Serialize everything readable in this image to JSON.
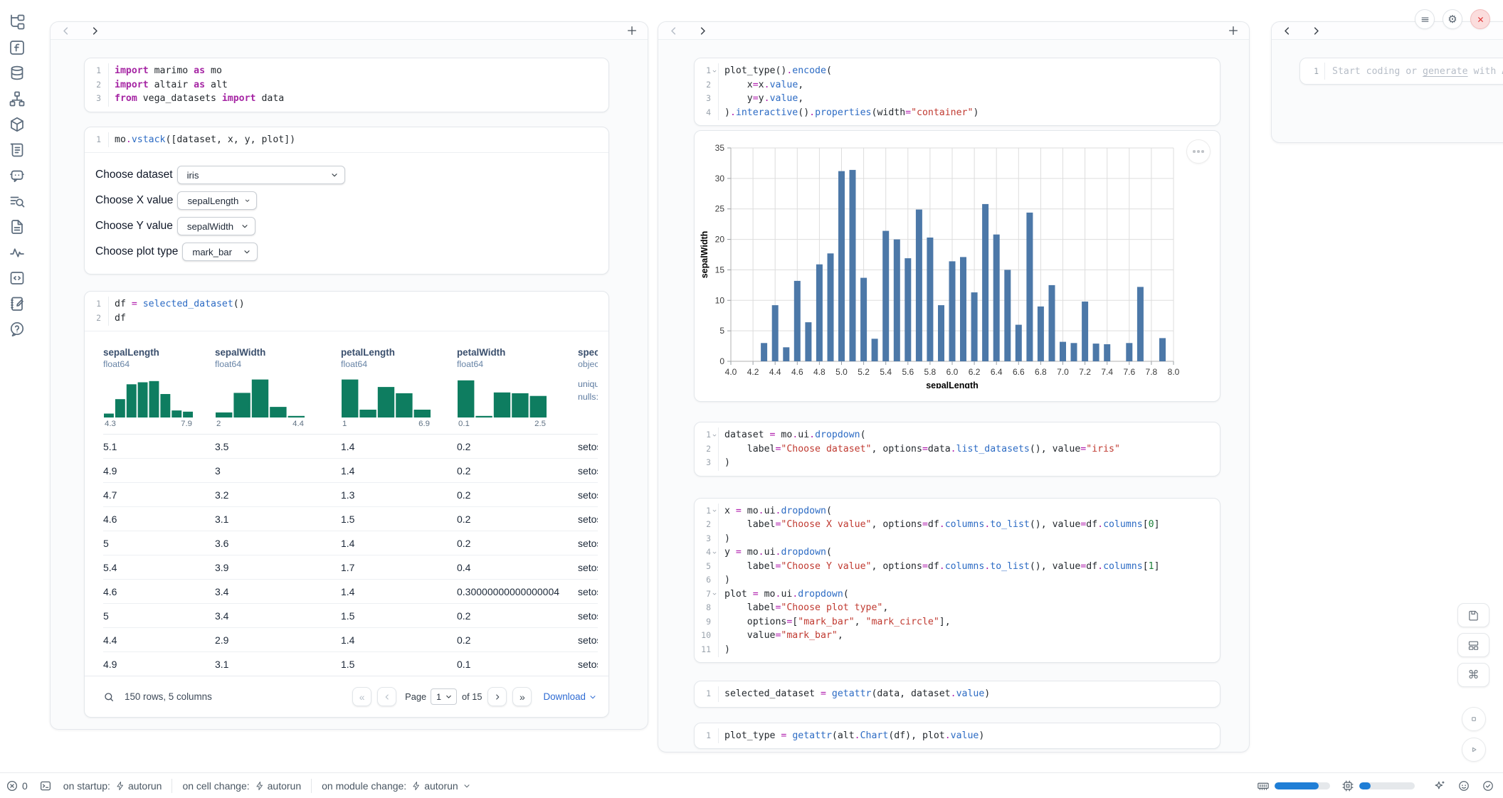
{
  "sidebar": {
    "icons": [
      "file-tree",
      "functions",
      "database",
      "dependencies",
      "packages",
      "scroll",
      "chat-bot",
      "search-list",
      "document",
      "activity",
      "snippets",
      "scratchpad",
      "help"
    ]
  },
  "left_panel": {
    "cells": {
      "imports": [
        {
          "n": "1",
          "t": [
            [
              "kw",
              "import"
            ],
            [
              "p",
              " marimo "
            ],
            [
              "kw",
              "as"
            ],
            [
              "p",
              " mo"
            ]
          ]
        },
        {
          "n": "2",
          "t": [
            [
              "kw",
              "import"
            ],
            [
              "p",
              " altair "
            ],
            [
              "kw",
              "as"
            ],
            [
              "p",
              " alt"
            ]
          ]
        },
        {
          "n": "3",
          "t": [
            [
              "kw",
              "from"
            ],
            [
              "p",
              " vega_datasets "
            ],
            [
              "kw",
              "import"
            ],
            [
              "p",
              " data"
            ]
          ]
        }
      ],
      "vstack": [
        {
          "n": "1",
          "t": [
            [
              "p",
              "mo"
            ],
            [
              "op",
              "."
            ],
            [
              "fn",
              "vstack"
            ],
            [
              "p",
              "([dataset, x, y, plot])"
            ]
          ]
        }
      ],
      "df": [
        {
          "n": "1",
          "t": [
            [
              "p",
              "df "
            ],
            [
              "op",
              "="
            ],
            [
              "p",
              " "
            ],
            [
              "fn",
              "selected_dataset"
            ],
            [
              "p",
              "()"
            ]
          ]
        },
        {
          "n": "2",
          "t": [
            [
              "p",
              "df"
            ]
          ]
        }
      ]
    },
    "controls": [
      {
        "label": "Choose dataset",
        "value": "iris"
      },
      {
        "label": "Choose X value",
        "value": "sepalLength"
      },
      {
        "label": "Choose Y value",
        "value": "sepalWidth"
      },
      {
        "label": "Choose plot type",
        "value": "mark_bar"
      }
    ],
    "table": {
      "columns": [
        {
          "name": "sepalLength",
          "dtype": "float64",
          "hist": [
            0.1,
            0.47,
            0.85,
            0.9,
            0.93,
            0.6,
            0.18,
            0.15
          ],
          "min": "4.3",
          "max": "7.9"
        },
        {
          "name": "sepalWidth",
          "dtype": "float64",
          "hist": [
            0.13,
            0.63,
            0.97,
            0.27,
            0.04
          ],
          "min": "2",
          "max": "4.4"
        },
        {
          "name": "petalLength",
          "dtype": "float64",
          "hist": [
            0.97,
            0.2,
            0.78,
            0.62,
            0.2
          ],
          "min": "1",
          "max": "6.9"
        },
        {
          "name": "petalWidth",
          "dtype": "float64",
          "hist": [
            0.95,
            0.04,
            0.64,
            0.62,
            0.55
          ],
          "min": "0.1",
          "max": "2.5"
        },
        {
          "name": "species",
          "dtype": "object",
          "meta": [
            "unique",
            "nulls:"
          ]
        }
      ],
      "rows": [
        [
          "5.1",
          "3.5",
          "1.4",
          "0.2",
          "setosa"
        ],
        [
          "4.9",
          "3",
          "1.4",
          "0.2",
          "setosa"
        ],
        [
          "4.7",
          "3.2",
          "1.3",
          "0.2",
          "setosa"
        ],
        [
          "4.6",
          "3.1",
          "1.5",
          "0.2",
          "setosa"
        ],
        [
          "5",
          "3.6",
          "1.4",
          "0.2",
          "setosa"
        ],
        [
          "5.4",
          "3.9",
          "1.7",
          "0.4",
          "setosa"
        ],
        [
          "4.6",
          "3.4",
          "1.4",
          "0.30000000000000004",
          "setosa"
        ],
        [
          "5",
          "3.4",
          "1.5",
          "0.2",
          "setosa"
        ],
        [
          "4.4",
          "2.9",
          "1.4",
          "0.2",
          "setosa"
        ],
        [
          "4.9",
          "3.1",
          "1.5",
          "0.1",
          "setosa"
        ]
      ],
      "footer": {
        "summary": "150 rows, 5 columns",
        "first_label": "«",
        "prev_label": "‹",
        "next_label": "›",
        "last_label": "»",
        "page_label": "Page",
        "page_value": "1",
        "pages_label": "of 15",
        "download_label": "Download"
      }
    }
  },
  "middle_panel": {
    "cells": {
      "plot_encode": [
        {
          "n": "1",
          "fold": true,
          "t": [
            [
              "p",
              "plot_type()"
            ],
            [
              "op",
              "."
            ],
            [
              "fn",
              "encode"
            ],
            [
              "p",
              "("
            ]
          ]
        },
        {
          "n": "2",
          "t": [
            [
              "p",
              "    x"
            ],
            [
              "op",
              "="
            ],
            [
              "p",
              "x"
            ],
            [
              "op",
              "."
            ],
            [
              "fn",
              "value"
            ],
            [
              "p",
              ","
            ]
          ]
        },
        {
          "n": "3",
          "t": [
            [
              "p",
              "    y"
            ],
            [
              "op",
              "="
            ],
            [
              "p",
              "y"
            ],
            [
              "op",
              "."
            ],
            [
              "fn",
              "value"
            ],
            [
              "p",
              ","
            ]
          ]
        },
        {
          "n": "4",
          "t": [
            [
              "p",
              ")"
            ],
            [
              "op",
              "."
            ],
            [
              "fn",
              "interactive"
            ],
            [
              "p",
              "()"
            ],
            [
              "op",
              "."
            ],
            [
              "fn",
              "properties"
            ],
            [
              "p",
              "(width"
            ],
            [
              "op",
              "="
            ],
            [
              "str",
              "\"container\""
            ],
            [
              "p",
              ")"
            ]
          ]
        }
      ],
      "dataset_dropdown": [
        {
          "n": "1",
          "fold": true,
          "t": [
            [
              "p",
              "dataset "
            ],
            [
              "op",
              "="
            ],
            [
              "p",
              " mo"
            ],
            [
              "op",
              "."
            ],
            [
              "p",
              "ui"
            ],
            [
              "op",
              "."
            ],
            [
              "fn",
              "dropdown"
            ],
            [
              "p",
              "("
            ]
          ]
        },
        {
          "n": "2",
          "t": [
            [
              "p",
              "    label"
            ],
            [
              "op",
              "="
            ],
            [
              "str",
              "\"Choose dataset\""
            ],
            [
              "p",
              ", options"
            ],
            [
              "op",
              "="
            ],
            [
              "p",
              "data"
            ],
            [
              "op",
              "."
            ],
            [
              "fn",
              "list_datasets"
            ],
            [
              "p",
              "(), value"
            ],
            [
              "op",
              "="
            ],
            [
              "str",
              "\"iris\""
            ]
          ]
        },
        {
          "n": "3",
          "t": [
            [
              "p",
              ")"
            ]
          ]
        }
      ],
      "xy_plot_dropdowns": [
        {
          "n": "1",
          "fold": true,
          "t": [
            [
              "p",
              "x "
            ],
            [
              "op",
              "="
            ],
            [
              "p",
              " mo"
            ],
            [
              "op",
              "."
            ],
            [
              "p",
              "ui"
            ],
            [
              "op",
              "."
            ],
            [
              "fn",
              "dropdown"
            ],
            [
              "p",
              "("
            ]
          ]
        },
        {
          "n": "2",
          "t": [
            [
              "p",
              "    label"
            ],
            [
              "op",
              "="
            ],
            [
              "str",
              "\"Choose X value\""
            ],
            [
              "p",
              ", options"
            ],
            [
              "op",
              "="
            ],
            [
              "p",
              "df"
            ],
            [
              "op",
              "."
            ],
            [
              "fn",
              "columns"
            ],
            [
              "op",
              "."
            ],
            [
              "fn",
              "to_list"
            ],
            [
              "p",
              "(), value"
            ],
            [
              "op",
              "="
            ],
            [
              "p",
              "df"
            ],
            [
              "op",
              "."
            ],
            [
              "fn",
              "columns"
            ],
            [
              "p",
              "["
            ],
            [
              "num",
              "0"
            ],
            [
              "p",
              "]"
            ]
          ]
        },
        {
          "n": "3",
          "t": [
            [
              "p",
              ")"
            ]
          ]
        },
        {
          "n": "4",
          "fold": true,
          "t": [
            [
              "p",
              "y "
            ],
            [
              "op",
              "="
            ],
            [
              "p",
              " mo"
            ],
            [
              "op",
              "."
            ],
            [
              "p",
              "ui"
            ],
            [
              "op",
              "."
            ],
            [
              "fn",
              "dropdown"
            ],
            [
              "p",
              "("
            ]
          ]
        },
        {
          "n": "5",
          "t": [
            [
              "p",
              "    label"
            ],
            [
              "op",
              "="
            ],
            [
              "str",
              "\"Choose Y value\""
            ],
            [
              "p",
              ", options"
            ],
            [
              "op",
              "="
            ],
            [
              "p",
              "df"
            ],
            [
              "op",
              "."
            ],
            [
              "fn",
              "columns"
            ],
            [
              "op",
              "."
            ],
            [
              "fn",
              "to_list"
            ],
            [
              "p",
              "(), value"
            ],
            [
              "op",
              "="
            ],
            [
              "p",
              "df"
            ],
            [
              "op",
              "."
            ],
            [
              "fn",
              "columns"
            ],
            [
              "p",
              "["
            ],
            [
              "num",
              "1"
            ],
            [
              "p",
              "]"
            ]
          ]
        },
        {
          "n": "6",
          "t": [
            [
              "p",
              ")"
            ]
          ]
        },
        {
          "n": "7",
          "fold": true,
          "t": [
            [
              "p",
              "plot "
            ],
            [
              "op",
              "="
            ],
            [
              "p",
              " mo"
            ],
            [
              "op",
              "."
            ],
            [
              "p",
              "ui"
            ],
            [
              "op",
              "."
            ],
            [
              "fn",
              "dropdown"
            ],
            [
              "p",
              "("
            ]
          ]
        },
        {
          "n": "8",
          "t": [
            [
              "p",
              "    label"
            ],
            [
              "op",
              "="
            ],
            [
              "str",
              "\"Choose plot type\""
            ],
            [
              "p",
              ","
            ]
          ]
        },
        {
          "n": "9",
          "t": [
            [
              "p",
              "    options"
            ],
            [
              "op",
              "="
            ],
            [
              "p",
              "["
            ],
            [
              "str",
              "\"mark_bar\""
            ],
            [
              "p",
              ", "
            ],
            [
              "str",
              "\"mark_circle\""
            ],
            [
              "p",
              "],"
            ]
          ]
        },
        {
          "n": "10",
          "t": [
            [
              "p",
              "    value"
            ],
            [
              "op",
              "="
            ],
            [
              "str",
              "\"mark_bar\""
            ],
            [
              "p",
              ","
            ]
          ]
        },
        {
          "n": "11",
          "t": [
            [
              "p",
              ")"
            ]
          ]
        }
      ],
      "selected_dataset": [
        {
          "n": "1",
          "t": [
            [
              "p",
              "selected_dataset "
            ],
            [
              "op",
              "="
            ],
            [
              "p",
              " "
            ],
            [
              "fn",
              "getattr"
            ],
            [
              "p",
              "(data, dataset"
            ],
            [
              "op",
              "."
            ],
            [
              "fn",
              "value"
            ],
            [
              "p",
              ")"
            ]
          ]
        }
      ],
      "plot_type": [
        {
          "n": "1",
          "t": [
            [
              "p",
              "plot_type "
            ],
            [
              "op",
              "="
            ],
            [
              "p",
              " "
            ],
            [
              "fn",
              "getattr"
            ],
            [
              "p",
              "(alt"
            ],
            [
              "op",
              "."
            ],
            [
              "fn",
              "Chart"
            ],
            [
              "p",
              "(df), plot"
            ],
            [
              "op",
              "."
            ],
            [
              "fn",
              "value"
            ],
            [
              "p",
              ")"
            ]
          ]
        }
      ]
    }
  },
  "right_panel": {
    "line_number": "1",
    "placeholder": {
      "prefix": "Start coding or ",
      "link": "generate",
      "suffix": " with AI"
    }
  },
  "window_controls": {
    "icons": [
      "menu",
      "settings",
      "close"
    ]
  },
  "side_actions": {
    "icons": [
      "save",
      "layout",
      "command",
      "stop",
      "run"
    ]
  },
  "status_bar": {
    "error_count": "0",
    "run_settings": [
      {
        "label": "on startup:",
        "value": "autorun",
        "chevron": false
      },
      {
        "label": "on cell change:",
        "value": "autorun",
        "chevron": false
      },
      {
        "label": "on module change:",
        "value": "autorun",
        "chevron": true
      }
    ],
    "ram_percent": 80,
    "cpu_percent": 21,
    "right_icons": [
      "memory",
      "cpu",
      "ai-sparkle",
      "robot",
      "check-circle"
    ]
  },
  "chart_data": {
    "type": "bar",
    "title": "",
    "xlabel": "sepalLength",
    "ylabel": "sepalWidth",
    "xlim": [
      4.0,
      8.0
    ],
    "ylim": [
      0,
      35
    ],
    "x_tick_step": 0.2,
    "y_tick_step": 5,
    "grid": true,
    "legend": "none",
    "bar_color": "#4c78a8",
    "x": [
      4.3,
      4.4,
      4.5,
      4.6,
      4.7,
      4.8,
      4.9,
      5.0,
      5.1,
      5.2,
      5.3,
      5.4,
      5.5,
      5.6,
      5.7,
      5.8,
      5.9,
      6.0,
      6.1,
      6.2,
      6.3,
      6.4,
      6.5,
      6.6,
      6.7,
      6.8,
      6.9,
      7.0,
      7.1,
      7.2,
      7.3,
      7.4,
      7.6,
      7.7,
      7.9
    ],
    "values": [
      3.0,
      9.2,
      2.3,
      13.2,
      6.4,
      15.9,
      17.7,
      31.2,
      31.4,
      13.7,
      3.7,
      21.4,
      20.0,
      16.9,
      24.9,
      20.3,
      9.2,
      16.4,
      17.1,
      11.3,
      25.8,
      20.8,
      15.0,
      6.0,
      24.4,
      9.0,
      12.5,
      3.2,
      3.0,
      9.8,
      2.9,
      2.8,
      3.0,
      12.2,
      3.8
    ]
  },
  "colors": {
    "accent_blue": "#1f7ed6",
    "chart_bar_blue": "#4c78a8",
    "histogram_teal": "#0e7d60",
    "close_red": "#e03131",
    "string_red": "#c03a31",
    "keyword_magenta": "#a626a4",
    "function_blue": "#2c6bc4"
  }
}
